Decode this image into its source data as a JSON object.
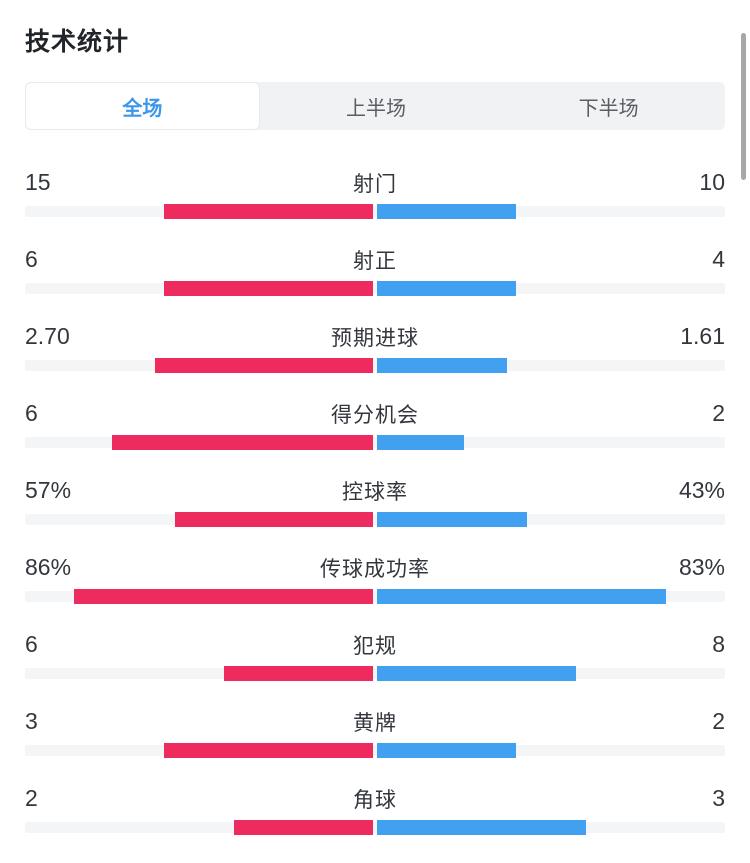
{
  "page": {
    "title": "技术统计"
  },
  "tabs": [
    {
      "label": "全场",
      "active": true
    },
    {
      "label": "上半场",
      "active": false
    },
    {
      "label": "下半场",
      "active": false
    }
  ],
  "colors": {
    "home": "#ee2b5f",
    "away": "#41a1f0",
    "track": "#f4f5f7",
    "tab_bar_bg": "#f1f2f4",
    "tab_active_text": "#3b96ec",
    "tab_inactive_text": "#595d64",
    "text": "#33373d",
    "scrollbar": "#a7a7a7"
  },
  "stats": {
    "rows": [
      {
        "label": "射门",
        "left": "15",
        "right": "10"
      },
      {
        "label": "射正",
        "left": "6",
        "right": "4"
      },
      {
        "label": "预期进球",
        "left": "2.70",
        "right": "1.61"
      },
      {
        "label": "得分机会",
        "left": "6",
        "right": "2"
      },
      {
        "label": "控球率",
        "left": "57%",
        "right": "43%"
      },
      {
        "label": "传球成功率",
        "left": "86%",
        "right": "83%"
      },
      {
        "label": "犯规",
        "left": "6",
        "right": "8"
      },
      {
        "label": "黄牌",
        "left": "3",
        "right": "2"
      },
      {
        "label": "角球",
        "left": "2",
        "right": "3"
      }
    ]
  }
}
